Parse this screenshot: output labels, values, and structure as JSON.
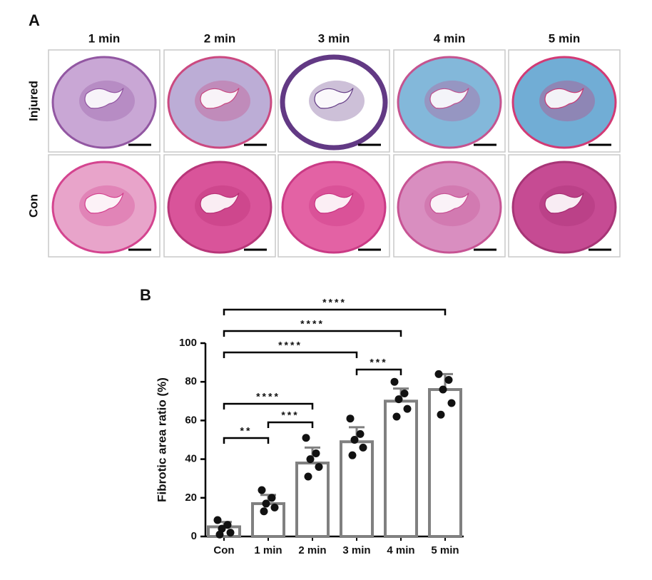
{
  "panel_a": {
    "label": "A",
    "columns": [
      "1 min",
      "2 min",
      "3 min",
      "4 min",
      "5 min"
    ],
    "rows": [
      "Injured",
      "Con"
    ]
  },
  "chart_data": {
    "type": "bar",
    "panel_label": "B",
    "y_label": "Fibrotic  area ratio (%)",
    "categories": [
      "Con",
      "1 min",
      "2 min",
      "3 min",
      "4 min",
      "5 min"
    ],
    "values": [
      5,
      17,
      38,
      49,
      70,
      76
    ],
    "errors": [
      2.5,
      4.5,
      8,
      7.5,
      6.5,
      8
    ],
    "points": [
      [
        8.5,
        6,
        4,
        2,
        1
      ],
      [
        24,
        20,
        17,
        15,
        13
      ],
      [
        51,
        43,
        40,
        36,
        31
      ],
      [
        61,
        53,
        50,
        46,
        42
      ],
      [
        80,
        74,
        71,
        66,
        62
      ],
      [
        84,
        81,
        76,
        69,
        63
      ]
    ],
    "bar_color": "#808080",
    "point_color": "#111111",
    "ylim": [
      0,
      100
    ],
    "yticks": [
      0,
      20,
      40,
      60,
      80,
      100
    ],
    "comparisons": [
      {
        "between": [
          0,
          5
        ],
        "label": "****"
      },
      {
        "between": [
          0,
          4
        ],
        "label": "****"
      },
      {
        "between": [
          0,
          3
        ],
        "label": "****"
      },
      {
        "between": [
          3,
          4
        ],
        "label": "***"
      },
      {
        "between": [
          0,
          2
        ],
        "label": "****"
      },
      {
        "between": [
          1,
          2
        ],
        "label": "***"
      },
      {
        "between": [
          0,
          1
        ],
        "label": "**"
      }
    ]
  }
}
